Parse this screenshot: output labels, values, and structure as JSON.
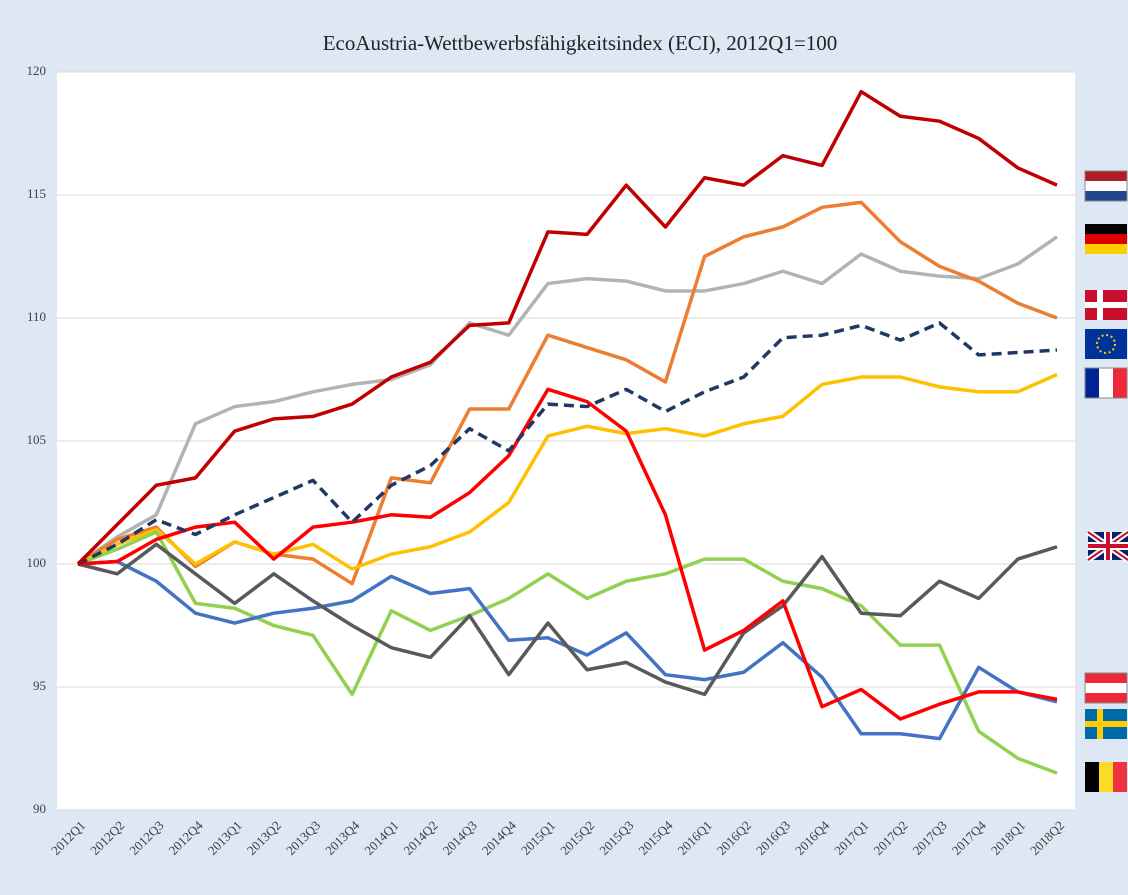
{
  "chart_data": {
    "type": "line",
    "title": "EcoAustria-Wettbewerbsfähigkeitsindex (ECI), 2012Q1=100",
    "categories": [
      "2012Q1",
      "2012Q2",
      "2012Q3",
      "2012Q4",
      "2013Q1",
      "2013Q2",
      "2013Q3",
      "2013Q4",
      "2014Q1",
      "2014Q2",
      "2014Q3",
      "2014Q4",
      "2015Q1",
      "2015Q2",
      "2015Q3",
      "2015Q4",
      "2016Q1",
      "2016Q2",
      "2016Q3",
      "2016Q4",
      "2017Q1",
      "2017Q2",
      "2017Q3",
      "2017Q4",
      "2018Q1",
      "2018Q2"
    ],
    "ylim": [
      90,
      120
    ],
    "yticks": [
      90,
      95,
      100,
      105,
      110,
      115,
      120
    ],
    "grid": true,
    "series": [
      {
        "color": "#b3b3b3",
        "values": [
          100,
          101.1,
          102,
          105.7,
          106.4,
          106.6,
          107.0,
          107.3,
          107.5,
          108.1,
          109.8,
          109.3,
          111.4,
          111.6,
          111.5,
          111.1,
          111.1,
          111.4,
          111.9,
          111.4,
          112.6,
          111.9,
          111.7,
          111.6,
          112.2,
          113.3
        ]
      },
      {
        "color": "#ed7d31",
        "values": [
          100,
          101,
          101.5,
          99.9,
          100.9,
          100.4,
          100.2,
          99.2,
          103.5,
          103.3,
          106.3,
          106.3,
          109.3,
          108.8,
          108.3,
          107.4,
          112.5,
          113.3,
          113.7,
          114.5,
          114.7,
          113.1,
          112.1,
          111.5,
          110.6,
          110.0
        ]
      },
      {
        "color": "#ffc000",
        "values": [
          100,
          100.8,
          101.4,
          100.0,
          100.9,
          100.4,
          100.8,
          99.8,
          100.4,
          100.7,
          101.3,
          102.5,
          105.2,
          105.6,
          105.3,
          105.5,
          105.2,
          105.7,
          106.0,
          107.3,
          107.6,
          107.6,
          107.2,
          107.0,
          107.0,
          107.7
        ]
      },
      {
        "color": "#92d050",
        "values": [
          100,
          100.6,
          101.3,
          98.4,
          98.2,
          97.5,
          97.1,
          94.7,
          98.1,
          97.3,
          97.9,
          98.6,
          99.6,
          98.6,
          99.3,
          99.6,
          100.2,
          100.2,
          99.3,
          99.0,
          98.3,
          96.7,
          96.7,
          93.2,
          92.1,
          91.5
        ]
      },
      {
        "color": "#4472c4",
        "values": [
          100,
          100.1,
          99.3,
          98.0,
          97.6,
          98.0,
          98.2,
          98.5,
          99.5,
          98.8,
          99.0,
          96.9,
          97.0,
          96.3,
          97.2,
          95.5,
          95.3,
          95.6,
          96.8,
          95.4,
          93.1,
          93.1,
          92.9,
          95.8,
          94.8,
          94.4
        ]
      },
      {
        "color": "#595959",
        "values": [
          100,
          99.6,
          100.8,
          99.6,
          98.4,
          99.6,
          98.5,
          97.5,
          96.6,
          96.2,
          97.9,
          95.5,
          97.6,
          95.7,
          96.0,
          95.2,
          94.7,
          97.2,
          98.3,
          100.3,
          98.0,
          97.9,
          99.3,
          98.6,
          100.2,
          100.7
        ]
      },
      {
        "color": "#ff0000",
        "values": [
          100,
          100.1,
          101.0,
          101.5,
          101.7,
          100.2,
          101.5,
          101.7,
          102.0,
          101.9,
          102.9,
          104.4,
          107.1,
          106.6,
          105.4,
          102.0,
          96.5,
          97.3,
          98.5,
          94.2,
          94.9,
          93.7,
          94.3,
          94.8,
          94.8,
          94.5
        ]
      },
      {
        "color": "#1f3864",
        "dashed": true,
        "values": [
          100,
          100.8,
          101.8,
          101.2,
          102.0,
          102.7,
          103.4,
          101.7,
          103.2,
          104.0,
          105.5,
          104.6,
          106.5,
          106.4,
          107.1,
          106.2,
          107.0,
          107.6,
          109.2,
          109.3,
          109.7,
          109.1,
          109.8,
          108.5,
          108.6,
          108.7
        ]
      },
      {
        "color": "#c00000",
        "values": [
          100,
          101.6,
          103.2,
          103.5,
          105.4,
          105.9,
          106.0,
          106.5,
          107.6,
          108.2,
          109.7,
          109.8,
          113.5,
          113.4,
          115.4,
          113.7,
          115.7,
          115.4,
          116.6,
          116.2,
          119.2,
          118.2,
          118.0,
          117.3,
          116.1,
          115.4
        ]
      }
    ]
  }
}
